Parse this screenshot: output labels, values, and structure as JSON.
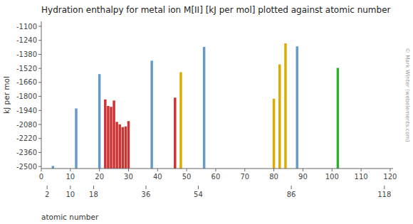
{
  "chart_data": {
    "type": "bar",
    "title": "Hydration enthalpy for metal ion M[II] [kJ per mol] plotted against atomic number",
    "y_label": "kJ per mol",
    "x_label": "atomic number",
    "x": [
      4,
      12,
      20,
      22,
      23,
      24,
      25,
      26,
      27,
      28,
      29,
      30,
      38,
      46,
      48,
      56,
      80,
      82,
      84,
      88,
      102
    ],
    "values": [
      -2494,
      -1920,
      -1577,
      -1830,
      -1895,
      -1904,
      -1841,
      -2054,
      -2079,
      -2106,
      -2099,
      -2046,
      -1443,
      -1812,
      -1558,
      -1305,
      -1823,
      -1480,
      -1270,
      -1300,
      -1515
    ],
    "colors": [
      "#6699cc",
      "#6699cc",
      "#6699cc",
      "#cc3333",
      "#cc3333",
      "#cc3333",
      "#cc3333",
      "#cc3333",
      "#cc3333",
      "#cc3333",
      "#cc3333",
      "#cc3333",
      "#6699cc",
      "#cc3333",
      "#ddaa00",
      "#6699cc",
      "#ddaa00",
      "#ddaa00",
      "#ddaa00",
      "#6699cc",
      "#33aa33"
    ],
    "xlim": [
      0,
      121
    ],
    "ylim": [
      -2520,
      -1050
    ],
    "yticks": [
      -1100,
      -1240,
      -1380,
      -1520,
      -1660,
      -1800,
      -1940,
      -2080,
      -2220,
      -2360,
      -2500
    ],
    "xticks": [
      0,
      10,
      20,
      30,
      40,
      50,
      60,
      70,
      80,
      90,
      100,
      110,
      120
    ],
    "x2ticks": [
      2,
      10,
      18,
      36,
      54,
      86,
      118
    ],
    "annotations": [
      "© Mark Winter (webelements.com)"
    ],
    "grid": false
  }
}
